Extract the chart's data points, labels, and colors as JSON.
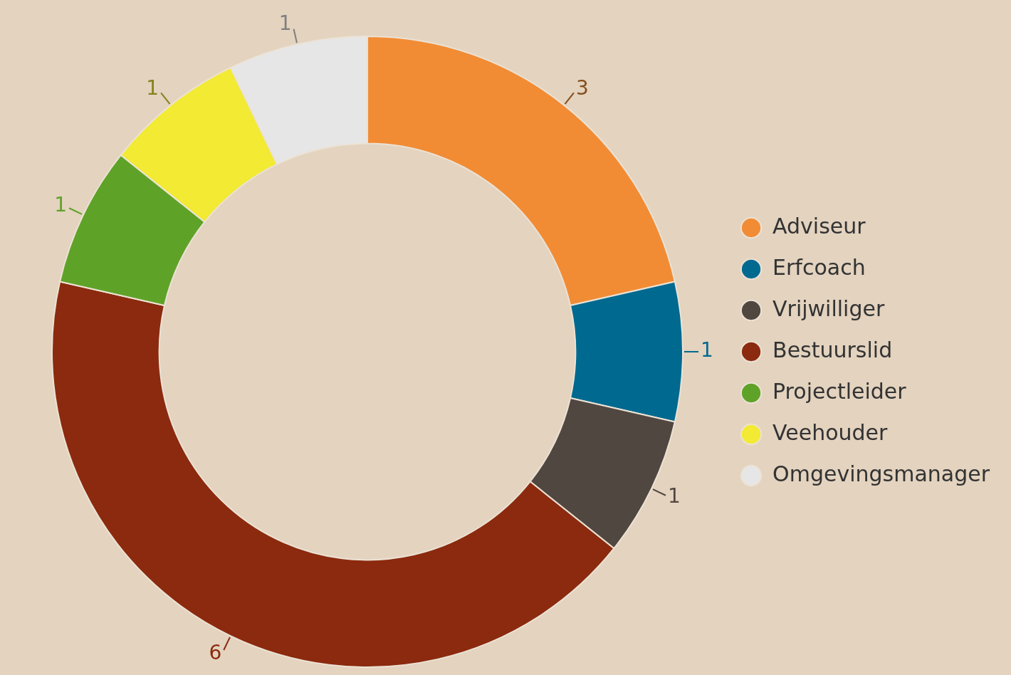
{
  "chart_data": {
    "type": "donut",
    "categories": [
      "Adviseur",
      "Erfcoach",
      "Vrijwilliger",
      "Bestuurslid",
      "Projectleider",
      "Veehouder",
      "Omgevingsmanager"
    ],
    "values": [
      3,
      1,
      1,
      6,
      1,
      1,
      1
    ],
    "colors": [
      "#f18c35",
      "#00698f",
      "#514741",
      "#8b2a0e",
      "#5fa228",
      "#f2ea33",
      "#e6e6e6"
    ],
    "data_labels": true,
    "legend": "right"
  }
}
